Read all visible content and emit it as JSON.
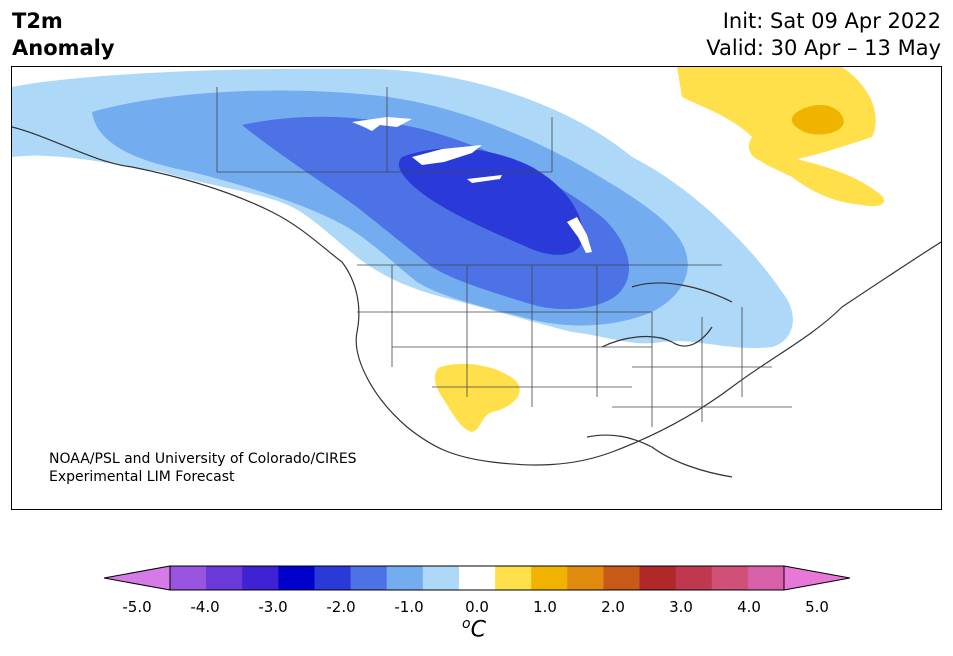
{
  "header": {
    "variable_line1": "T2m",
    "variable_line2": "Anomaly",
    "init": "Init: Sat 09 Apr 2022",
    "valid": "Valid: 30 Apr – 13 May"
  },
  "map": {
    "region": "North America",
    "credit_line1": "NOAA/PSL and University of Colorado/CIRES",
    "credit_line2": "Experimental LIM Forecast"
  },
  "colorbar": {
    "ticks": [
      "-5.0",
      "-4.0",
      "-3.0",
      "-2.0",
      "-1.0",
      "0.0",
      "1.0",
      "2.0",
      "3.0",
      "4.0",
      "5.0"
    ],
    "unit_sup": "o",
    "unit_base": "C",
    "colors": [
      "#d47be8",
      "#9955e0",
      "#6a3ad8",
      "#3e22d4",
      "#0000cc",
      "#2a3ad8",
      "#4d72e6",
      "#74acf0",
      "#aed8f8",
      "#ffffff",
      "#ffe04a",
      "#f0b400",
      "#e08a10",
      "#c85a18",
      "#b02828",
      "#c03850",
      "#d05078",
      "#d860a8",
      "#e878d8"
    ]
  }
}
